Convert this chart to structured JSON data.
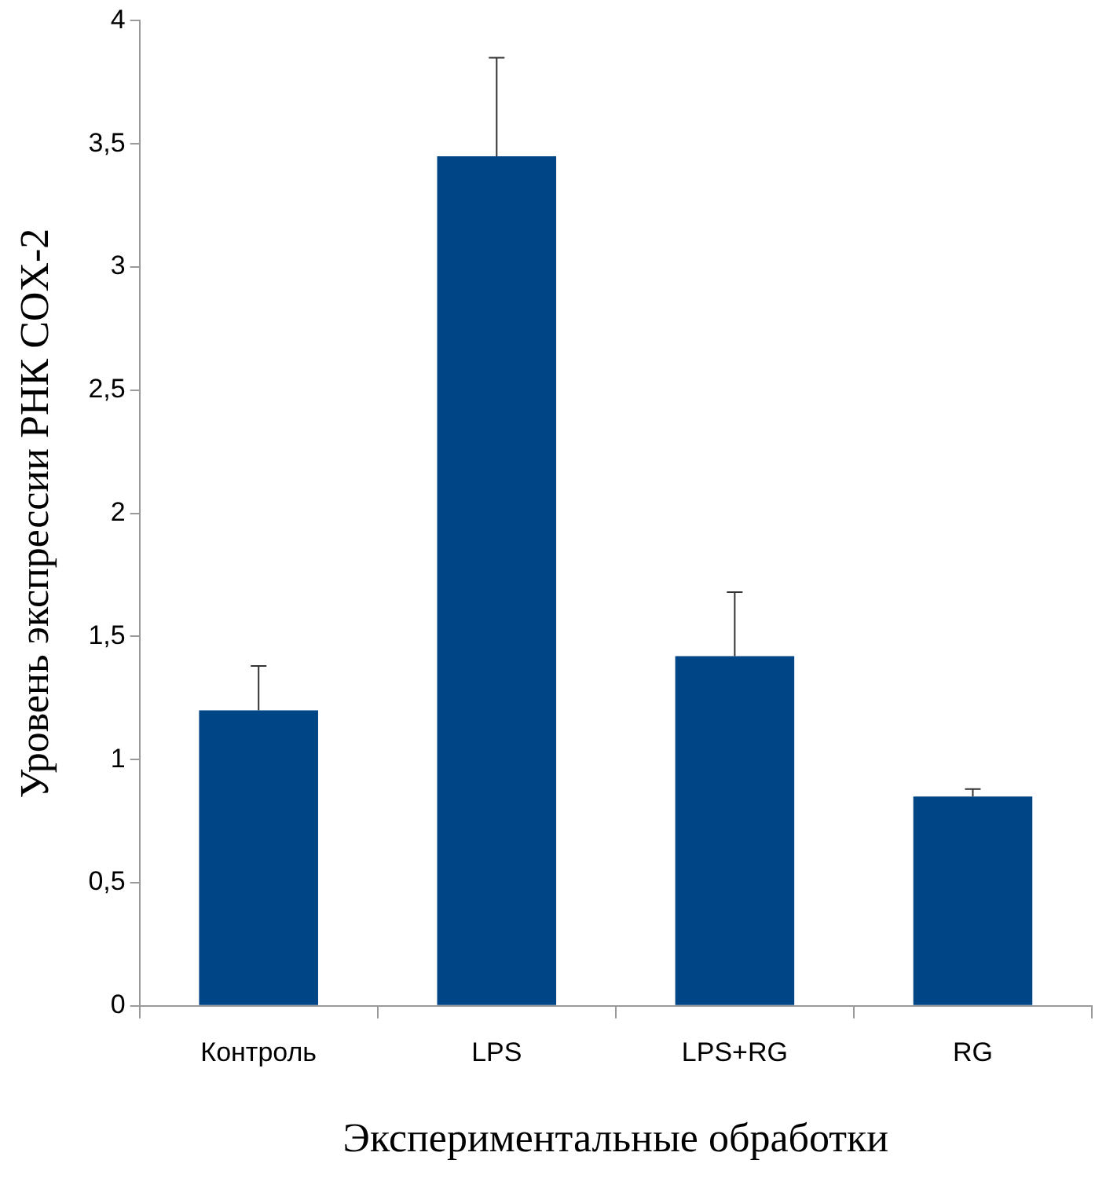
{
  "chart_data": {
    "type": "bar",
    "xlabel": "Экспериментальные обработки",
    "ylabel": "Уровень экспрессии РНК COX-2",
    "categories": [
      "Контроль",
      "LPS",
      "LPS+RG",
      "RG"
    ],
    "values": [
      1.2,
      3.45,
      1.42,
      0.85
    ],
    "color": "#004586",
    "errors": [
      [
        1.2,
        1.38
      ],
      [
        3.45,
        3.85
      ],
      [
        1.42,
        1.68
      ],
      [
        0.85,
        0.88
      ]
    ],
    "ylim": [
      0,
      4
    ],
    "yticks": [
      0,
      {
        "value": 0.5,
        "label": "0,5"
      },
      1,
      {
        "value": 1.5,
        "label": "1,5"
      },
      2,
      {
        "value": 2.5,
        "label": "2,5"
      },
      3,
      {
        "value": 3.5,
        "label": "3,5"
      },
      4
    ],
    "grid": false,
    "legend": false
  }
}
